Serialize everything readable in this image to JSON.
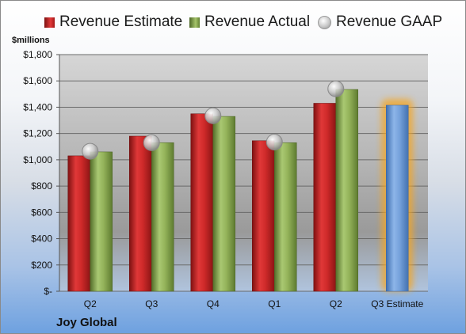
{
  "legend": {
    "estimate_label": "Revenue Estimate",
    "actual_label": "Revenue Actual",
    "gaap_label": "Revenue GAAP"
  },
  "unit_label": "$millions",
  "company": "Joy Global",
  "colors": {
    "estimate": "#c62828",
    "actual": "#8caa4f",
    "gaap": "#bfbfbf",
    "forecast": "#6f9bd6",
    "forecast_glow": "#f5a623"
  },
  "chart_data": {
    "type": "bar",
    "categories": [
      "Q2",
      "Q3",
      "Q4",
      "Q1",
      "Q2",
      "Q3 Estimate"
    ],
    "series": [
      {
        "name": "Revenue Estimate",
        "values": [
          1030,
          1180,
          1350,
          1145,
          1430,
          null
        ]
      },
      {
        "name": "Revenue Actual",
        "values": [
          1060,
          1130,
          1330,
          1130,
          1535,
          null
        ]
      },
      {
        "name": "Revenue GAAP",
        "values": [
          1065,
          1130,
          1335,
          1135,
          1540,
          null
        ]
      }
    ],
    "forecast": {
      "category": "Q3 Estimate",
      "value": 1415
    },
    "ylabel": "$millions",
    "ylim": [
      0,
      1800
    ],
    "yticks": [
      0,
      200,
      400,
      600,
      800,
      1000,
      1200,
      1400,
      1600,
      1800
    ],
    "ytick_labels": [
      "$-",
      "$200",
      "$400",
      "$600",
      "$800",
      "$1,000",
      "$1,200",
      "$1,400",
      "$1,600",
      "$1,800"
    ],
    "grid": true,
    "legend_position": "top"
  }
}
